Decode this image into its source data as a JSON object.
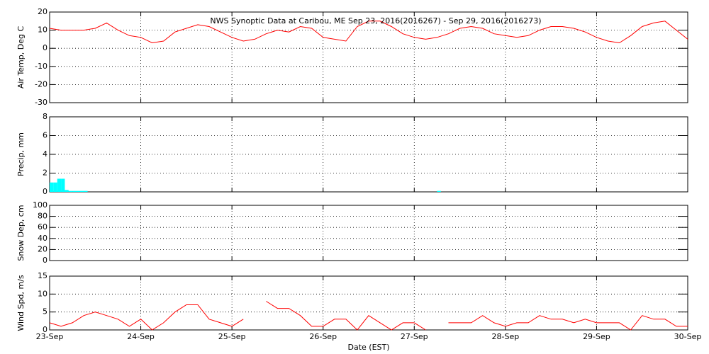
{
  "chart_data": [
    {
      "type": "line",
      "title": "NWS Synoptic Data at Caribou, ME   Sep 23, 2016(2016267) - Sep 29, 2016(2016273)",
      "y_label": "Air Temp, Deg C",
      "xlim": [
        0,
        168
      ],
      "ylim": [
        -30,
        20
      ],
      "yticks": [
        -30,
        -20,
        -10,
        0,
        10,
        20
      ],
      "grid": true,
      "x": [
        0,
        3,
        6,
        9,
        12,
        15,
        18,
        21,
        24,
        27,
        30,
        33,
        36,
        39,
        42,
        45,
        48,
        51,
        54,
        57,
        60,
        63,
        66,
        69,
        72,
        75,
        78,
        81,
        84,
        87,
        90,
        93,
        96,
        99,
        102,
        105,
        108,
        111,
        114,
        117,
        120,
        123,
        126,
        129,
        132,
        135,
        138,
        141,
        144,
        147,
        150,
        153,
        156,
        159,
        162,
        165,
        168
      ],
      "series": [
        {
          "color": "#ff0000",
          "values": [
            11,
            10,
            10,
            10,
            11,
            14,
            10,
            7,
            6,
            3,
            4,
            9,
            11,
            13,
            12,
            9,
            6,
            4,
            5,
            8,
            10,
            9,
            12,
            11,
            6,
            5,
            4,
            12,
            15,
            15,
            12,
            8,
            6,
            5,
            6,
            8,
            11,
            12,
            11,
            8,
            7,
            6,
            7,
            10,
            12,
            12,
            11,
            9,
            6,
            4,
            3,
            7,
            12,
            14,
            15,
            10,
            5
          ]
        }
      ]
    },
    {
      "type": "bar",
      "y_label": "Precip, mm",
      "xlim": [
        0,
        168
      ],
      "ylim": [
        0,
        8
      ],
      "yticks": [
        0,
        2,
        4,
        6,
        8
      ],
      "grid": true,
      "x": [
        0,
        1,
        2,
        3,
        4,
        5,
        6,
        7,
        8,
        9,
        102
      ],
      "series": [
        {
          "color": "#00ffff",
          "values": [
            1.0,
            1.0,
            1.4,
            1.4,
            0.2,
            0.1,
            0.1,
            0.1,
            0.1,
            0.1,
            0.1
          ]
        }
      ]
    },
    {
      "type": "line",
      "y_label": "Snow Dep, cm",
      "xlim": [
        0,
        168
      ],
      "ylim": [
        0,
        100
      ],
      "yticks": [
        0,
        20,
        40,
        60,
        80,
        100
      ],
      "grid": true,
      "series": []
    },
    {
      "type": "line",
      "y_label": "Wind Spd, m/s",
      "x_label": "Date (EST)",
      "xlim": [
        0,
        168
      ],
      "ylim": [
        0,
        15
      ],
      "yticks": [
        0,
        5,
        10,
        15
      ],
      "grid": true,
      "xticks": [
        {
          "value": 0,
          "label": "23-Sep"
        },
        {
          "value": 24,
          "label": "24-Sep"
        },
        {
          "value": 48,
          "label": "25-Sep"
        },
        {
          "value": 72,
          "label": "26-Sep"
        },
        {
          "value": 96,
          "label": "27-Sep"
        },
        {
          "value": 120,
          "label": "28-Sep"
        },
        {
          "value": 144,
          "label": "29-Sep"
        },
        {
          "value": 168,
          "label": "30-Sep"
        }
      ],
      "x": [
        0,
        3,
        6,
        9,
        12,
        15,
        18,
        21,
        24,
        27,
        30,
        33,
        36,
        39,
        42,
        45,
        48,
        51,
        54,
        57,
        60,
        63,
        66,
        69,
        72,
        75,
        78,
        81,
        84,
        87,
        90,
        93,
        96,
        99,
        102,
        105,
        108,
        111,
        114,
        117,
        120,
        123,
        126,
        129,
        132,
        135,
        138,
        141,
        144,
        147,
        150,
        153,
        156,
        159,
        162,
        165,
        168
      ],
      "series": [
        {
          "color": "#ff0000",
          "values": [
            2,
            1,
            2,
            4,
            5,
            4,
            3,
            1,
            3,
            0,
            2,
            5,
            7,
            7,
            3,
            2,
            1,
            3,
            null,
            8,
            6,
            6,
            4,
            1,
            1,
            3,
            3,
            0,
            4,
            2,
            0,
            2,
            2,
            0,
            null,
            2,
            2,
            2,
            4,
            2,
            1,
            2,
            2,
            4,
            3,
            3,
            2,
            3,
            2,
            2,
            2,
            0,
            4,
            3,
            3,
            1,
            1
          ]
        }
      ]
    }
  ]
}
